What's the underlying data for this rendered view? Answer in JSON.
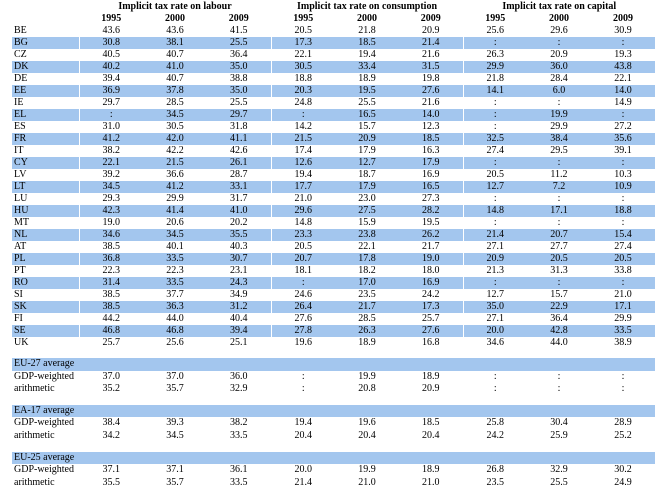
{
  "header": {
    "groups": [
      {
        "title": "Implicit tax rate on labour",
        "years": [
          "1995",
          "2000",
          "2009"
        ]
      },
      {
        "title": "Implicit tax rate on consumption",
        "years": [
          "1995",
          "2000",
          "2009"
        ]
      },
      {
        "title": "Implicit tax rate on capital",
        "years": [
          "1995",
          "2000",
          "2009"
        ]
      }
    ]
  },
  "table": {
    "rows": [
      [
        "BE",
        "43.6",
        "43.6",
        "41.5",
        "20.5",
        "21.8",
        "20.9",
        "25.6",
        "29.6",
        "30.9"
      ],
      [
        "BG",
        "30.8",
        "38.1",
        "25.5",
        "17.3",
        "18.5",
        "21.4",
        ":",
        ":",
        ":"
      ],
      [
        "CZ",
        "40.5",
        "40.7",
        "36.4",
        "22.1",
        "19.4",
        "21.6",
        "26.3",
        "20.9",
        "19.3"
      ],
      [
        "DK",
        "40.2",
        "41.0",
        "35.0",
        "30.5",
        "33.4",
        "31.5",
        "29.9",
        "36.0",
        "43.8"
      ],
      [
        "DE",
        "39.4",
        "40.7",
        "38.8",
        "18.8",
        "18.9",
        "19.8",
        "21.8",
        "28.4",
        "22.1"
      ],
      [
        "EE",
        "36.9",
        "37.8",
        "35.0",
        "20.3",
        "19.5",
        "27.6",
        "14.1",
        "6.0",
        "14.0"
      ],
      [
        "IE",
        "29.7",
        "28.5",
        "25.5",
        "24.8",
        "25.5",
        "21.6",
        ":",
        ":",
        "14.9"
      ],
      [
        "EL",
        ":",
        "34.5",
        "29.7",
        ":",
        "16.5",
        "14.0",
        ":",
        "19.9",
        ":"
      ],
      [
        "ES",
        "31.0",
        "30.5",
        "31.8",
        "14.2",
        "15.7",
        "12.3",
        ":",
        "29.9",
        "27.2"
      ],
      [
        "FR",
        "41.2",
        "42.0",
        "41.1",
        "21.5",
        "20.9",
        "18.5",
        "32.5",
        "38.4",
        "35.6"
      ],
      [
        "IT",
        "38.2",
        "42.2",
        "42.6",
        "17.4",
        "17.9",
        "16.3",
        "27.4",
        "29.5",
        "39.1"
      ],
      [
        "CY",
        "22.1",
        "21.5",
        "26.1",
        "12.6",
        "12.7",
        "17.9",
        ":",
        ":",
        ":"
      ],
      [
        "LV",
        "39.2",
        "36.6",
        "28.7",
        "19.4",
        "18.7",
        "16.9",
        "20.5",
        "11.2",
        "10.3"
      ],
      [
        "LT",
        "34.5",
        "41.2",
        "33.1",
        "17.7",
        "17.9",
        "16.5",
        "12.7",
        "7.2",
        "10.9"
      ],
      [
        "LU",
        "29.3",
        "29.9",
        "31.7",
        "21.0",
        "23.0",
        "27.3",
        ":",
        ":",
        ":"
      ],
      [
        "HU",
        "42.3",
        "41.4",
        "41.0",
        "29.6",
        "27.5",
        "28.2",
        "14.8",
        "17.1",
        "18.8"
      ],
      [
        "MT",
        "19.0",
        "20.6",
        "20.2",
        "14.8",
        "15.9",
        "19.5",
        ":",
        ":",
        ":"
      ],
      [
        "NL",
        "34.6",
        "34.5",
        "35.5",
        "23.3",
        "23.8",
        "26.2",
        "21.4",
        "20.7",
        "15.4"
      ],
      [
        "AT",
        "38.5",
        "40.1",
        "40.3",
        "20.5",
        "22.1",
        "21.7",
        "27.1",
        "27.7",
        "27.4"
      ],
      [
        "PL",
        "36.8",
        "33.5",
        "30.7",
        "20.7",
        "17.8",
        "19.0",
        "20.9",
        "20.5",
        "20.5"
      ],
      [
        "PT",
        "22.3",
        "22.3",
        "23.1",
        "18.1",
        "18.2",
        "18.0",
        "21.3",
        "31.3",
        "33.8"
      ],
      [
        "RO",
        "31.4",
        "33.5",
        "24.3",
        ":",
        "17.0",
        "16.9",
        ":",
        ":",
        ":"
      ],
      [
        "SI",
        "38.5",
        "37.7",
        "34.9",
        "24.6",
        "23.5",
        "24.2",
        "12.7",
        "15.7",
        "21.0"
      ],
      [
        "SK",
        "38.5",
        "36.3",
        "31.2",
        "26.4",
        "21.7",
        "17.3",
        "35.0",
        "22.9",
        "17.1"
      ],
      [
        "FI",
        "44.2",
        "44.0",
        "40.4",
        "27.6",
        "28.5",
        "25.7",
        "27.1",
        "36.4",
        "29.9"
      ],
      [
        "SE",
        "46.8",
        "46.8",
        "39.4",
        "27.8",
        "26.3",
        "27.6",
        "20.0",
        "42.8",
        "33.5"
      ],
      [
        "UK",
        "25.7",
        "25.6",
        "25.1",
        "19.6",
        "18.9",
        "16.8",
        "34.6",
        "44.0",
        "38.9"
      ]
    ],
    "averages": [
      {
        "title": "EU-27 average",
        "rows": [
          [
            "GDP-weighted",
            "37.0",
            "37.0",
            "36.0",
            ":",
            "19.9",
            "18.9",
            ":",
            ":",
            ":"
          ],
          [
            "arithmetic",
            "35.2",
            "35.7",
            "32.9",
            ":",
            "20.8",
            "20.9",
            ":",
            ":",
            ":"
          ]
        ]
      },
      {
        "title": "EA-17 average",
        "rows": [
          [
            "GDP-weighted",
            "38.4",
            "39.3",
            "38.2",
            "19.4",
            "19.6",
            "18.5",
            "25.8",
            "30.4",
            "28.9"
          ],
          [
            "arithmetic",
            "34.2",
            "34.5",
            "33.5",
            "20.4",
            "20.4",
            "20.4",
            "24.2",
            "25.9",
            "25.2"
          ]
        ]
      },
      {
        "title": "EU-25 average",
        "rows": [
          [
            "GDP-weighted",
            "37.1",
            "37.1",
            "36.1",
            "20.0",
            "19.9",
            "18.9",
            "26.8",
            "32.9",
            "30.2"
          ],
          [
            "arithmetic",
            "35.5",
            "35.7",
            "33.5",
            "21.4",
            "21.0",
            "21.0",
            "23.5",
            "25.5",
            "24.9"
          ]
        ]
      }
    ]
  }
}
